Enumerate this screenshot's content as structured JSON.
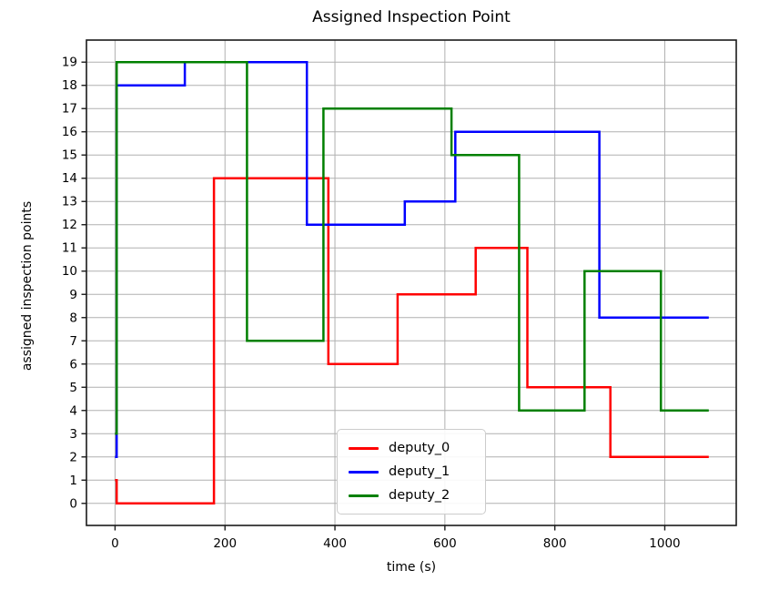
{
  "chart_data": {
    "type": "line",
    "subtype": "step-post",
    "title": "Assigned Inspection Point",
    "xlabel": "time (s)",
    "ylabel": "assigned inspection points",
    "xlim": [
      -52,
      1130
    ],
    "ylim": [
      -0.95,
      19.95
    ],
    "xticks": [
      0,
      200,
      400,
      600,
      800,
      1000
    ],
    "yticks": [
      0,
      1,
      2,
      3,
      4,
      5,
      6,
      7,
      8,
      9,
      10,
      11,
      12,
      13,
      14,
      15,
      16,
      17,
      18,
      19
    ],
    "grid": true,
    "grid_color": "#b0b0b0",
    "axes_color": "#1a1a1a",
    "legend_position": "lower center",
    "series": [
      {
        "name": "deputy_0",
        "color": "#ff0000",
        "points": [
          [
            0,
            1
          ],
          [
            3,
            0
          ],
          [
            180,
            14
          ],
          [
            388,
            6
          ],
          [
            514,
            9
          ],
          [
            656,
            11
          ],
          [
            750,
            5
          ],
          [
            901,
            2
          ],
          [
            1080,
            2
          ]
        ]
      },
      {
        "name": "deputy_1",
        "color": "#0000ff",
        "points": [
          [
            0,
            2
          ],
          [
            3,
            18
          ],
          [
            127,
            19
          ],
          [
            349,
            12
          ],
          [
            527,
            13
          ],
          [
            619,
            16
          ],
          [
            881,
            8
          ],
          [
            1080,
            8
          ]
        ]
      },
      {
        "name": "deputy_2",
        "color": "#008000",
        "points": [
          [
            0,
            3
          ],
          [
            3,
            19
          ],
          [
            240,
            7
          ],
          [
            379,
            17
          ],
          [
            612,
            15
          ],
          [
            735,
            4
          ],
          [
            854,
            10
          ],
          [
            993,
            4
          ],
          [
            1080,
            4
          ]
        ]
      }
    ]
  }
}
